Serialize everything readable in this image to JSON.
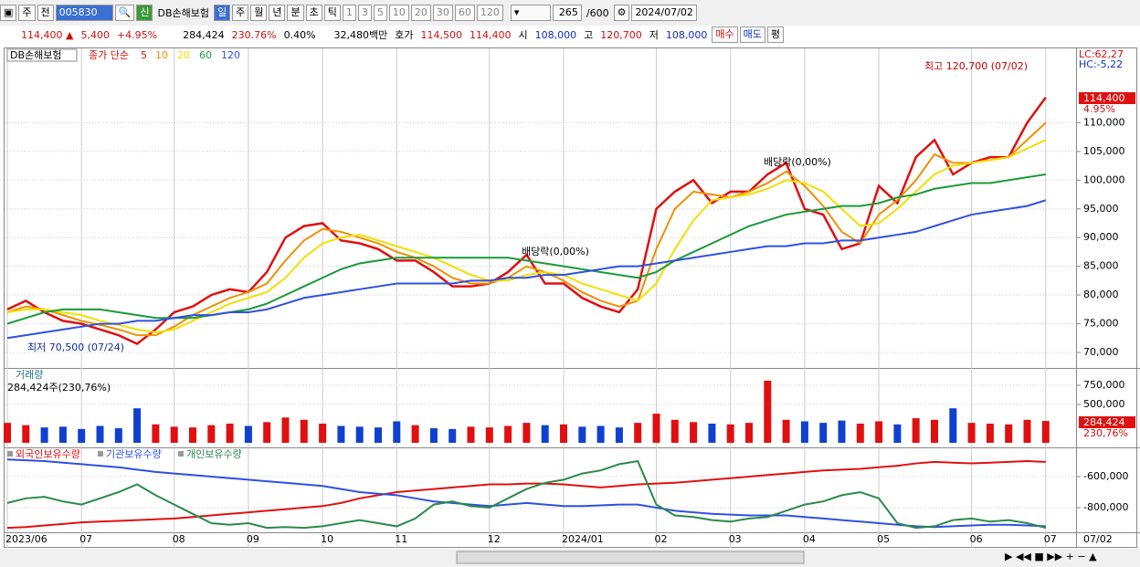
{
  "toolbar": {
    "row1": [
      "주",
      "전",
      "005830",
      "신",
      "DB손해보험",
      "일",
      "주",
      "월",
      "년",
      "분",
      "초",
      "틱",
      "1",
      "3",
      "5",
      "10",
      "20",
      "30",
      "60",
      "120",
      "265",
      "/600",
      "2024/07/02"
    ],
    "row2": [
      "114,400 ▲",
      "5,400",
      "+4.95%",
      "284,424",
      "230.76%",
      "0.40%",
      "32,480백만",
      "호가",
      "114,500",
      "114,400",
      "시",
      "108,000",
      "고",
      "120,700",
      "저",
      "108,000",
      "매수",
      "매도",
      "평"
    ]
  },
  "chart_data": [
    {
      "type": "line",
      "title": "DB손해보험",
      "subtitle": "종가 단순",
      "categories": [
        "2023/06",
        null,
        null,
        null,
        "07",
        null,
        null,
        null,
        null,
        "08",
        null,
        null,
        null,
        "09",
        null,
        null,
        null,
        "10",
        null,
        null,
        null,
        "11",
        null,
        null,
        null,
        null,
        "12",
        null,
        null,
        null,
        "2024/01",
        null,
        null,
        null,
        null,
        "02",
        null,
        null,
        null,
        "03",
        null,
        null,
        null,
        "04",
        null,
        null,
        null,
        "05",
        null,
        null,
        null,
        null,
        "06",
        null,
        null,
        null,
        "07"
      ],
      "last_date": "07/02",
      "ylim": [
        67300,
        123100
      ],
      "yticks": [
        {
          "value": 70000,
          "label": "70,000"
        },
        {
          "value": 75000,
          "label": "75,000"
        },
        {
          "value": 80000,
          "label": "80,000"
        },
        {
          "value": 85000,
          "label": "85,000"
        },
        {
          "value": 90000,
          "label": "90,000"
        },
        {
          "value": 95000,
          "label": "95,000"
        },
        {
          "value": 100000,
          "label": "100,000"
        },
        {
          "value": 105000,
          "label": "105,000"
        },
        {
          "value": 110000,
          "label": "110,000"
        }
      ],
      "grid": true,
      "annotations": {
        "high": "최고 120,700 (07/02)",
        "low": "최저 70,500 (07/24)",
        "dividend1": "배당락(0,00%)",
        "dividend2": "배당락(0,00%)",
        "lc": "LC:62,27",
        "hc": "HC:-5,22",
        "price": "114,400",
        "change": "4.95%"
      },
      "series": [
        {
          "name": "5",
          "color": "#e01010",
          "values": [
            77500,
            79000,
            77000,
            75500,
            75000,
            74000,
            73000,
            71500,
            74000,
            77000,
            78000,
            80000,
            81000,
            80500,
            84000,
            90000,
            92000,
            92500,
            89500,
            89000,
            88000,
            86000,
            86000,
            84000,
            81500,
            81500,
            82000,
            84000,
            87000,
            82000,
            82000,
            79500,
            78000,
            77000,
            81000,
            95000,
            98000,
            100000,
            96000,
            98000,
            98000,
            101000,
            103000,
            95000,
            94000,
            88000,
            89000,
            99000,
            96000,
            104000,
            107000,
            101000,
            103000,
            104000,
            104000,
            110000,
            114400
          ]
        },
        {
          "name": "10",
          "color": "#f09000",
          "values": [
            77000,
            78000,
            77500,
            76500,
            75500,
            74800,
            74000,
            73000,
            73000,
            74500,
            76500,
            78000,
            79500,
            80500,
            82000,
            86000,
            89500,
            91500,
            91000,
            90000,
            89000,
            87500,
            86500,
            85000,
            83000,
            82000,
            82000,
            83000,
            85000,
            84000,
            82500,
            80500,
            79000,
            78000,
            79000,
            88000,
            95000,
            98000,
            97500,
            97000,
            98000,
            99500,
            101500,
            99000,
            95500,
            91000,
            89000,
            94000,
            96500,
            100000,
            104500,
            103000,
            103000,
            103500,
            104000,
            107000,
            110000
          ]
        },
        {
          "name": "20",
          "color": "#f0e000",
          "values": [
            77000,
            77500,
            77500,
            77000,
            76500,
            75500,
            74800,
            74000,
            73500,
            74000,
            75500,
            77000,
            78500,
            79500,
            80500,
            83000,
            86500,
            89000,
            90000,
            90500,
            89500,
            88500,
            87500,
            86500,
            85000,
            83500,
            82500,
            82500,
            83500,
            84000,
            83500,
            82000,
            81000,
            80000,
            79000,
            82000,
            88000,
            93000,
            96500,
            97000,
            97500,
            98500,
            100000,
            99500,
            98000,
            95000,
            92000,
            92500,
            95000,
            98000,
            101000,
            102500,
            103000,
            103500,
            104000,
            105500,
            107000
          ]
        },
        {
          "name": "60",
          "color": "#1a9a3a",
          "values": [
            75000,
            76000,
            77000,
            77500,
            77500,
            77500,
            77000,
            76500,
            76000,
            76000,
            76000,
            76500,
            77000,
            77500,
            78500,
            80000,
            81500,
            83000,
            84500,
            85500,
            86000,
            86500,
            86500,
            86500,
            86500,
            86500,
            86500,
            86500,
            86000,
            85500,
            85000,
            84500,
            84000,
            83500,
            83000,
            84000,
            86000,
            87500,
            89000,
            90500,
            92000,
            93000,
            94000,
            94500,
            95000,
            95500,
            95500,
            96000,
            97000,
            97500,
            98500,
            99000,
            99500,
            99500,
            100000,
            100500,
            101000
          ]
        },
        {
          "name": "120",
          "color": "#3050e0",
          "values": [
            72500,
            73000,
            73500,
            74000,
            74500,
            75000,
            75000,
            75500,
            75500,
            76000,
            76500,
            76500,
            77000,
            77000,
            77500,
            78500,
            79500,
            80000,
            80500,
            81000,
            81500,
            82000,
            82000,
            82000,
            82000,
            82500,
            82500,
            83000,
            83000,
            83500,
            83500,
            84000,
            84500,
            85000,
            85000,
            85500,
            86000,
            86500,
            87000,
            87500,
            88000,
            88500,
            88500,
            89000,
            89000,
            89500,
            89500,
            90000,
            90500,
            91000,
            92000,
            93000,
            94000,
            94500,
            95000,
            95500,
            96500
          ]
        }
      ]
    },
    {
      "type": "bar",
      "title": "거래량",
      "subtitle": "284,424주(230,76%)",
      "up_color": "#e01010",
      "down_color": "#1040d0",
      "current_label": "284,424",
      "current_ratio": "230,76%",
      "ylim": [
        -60000,
        964000
      ],
      "yticks": [
        {
          "value": 500000,
          "label": "500,000"
        },
        {
          "value": 750000,
          "label": "750,000"
        }
      ],
      "values": [
        260000,
        230000,
        200000,
        210000,
        180000,
        220000,
        190000,
        450000,
        240000,
        210000,
        200000,
        230000,
        250000,
        220000,
        270000,
        330000,
        300000,
        250000,
        220000,
        210000,
        200000,
        280000,
        230000,
        190000,
        180000,
        210000,
        200000,
        220000,
        260000,
        230000,
        240000,
        210000,
        220000,
        200000,
        260000,
        380000,
        300000,
        270000,
        250000,
        240000,
        260000,
        810000,
        300000,
        280000,
        260000,
        290000,
        250000,
        280000,
        240000,
        320000,
        300000,
        450000,
        260000,
        250000,
        240000,
        300000,
        284424
      ]
    },
    {
      "type": "line",
      "legend": [
        "외국인보유수량",
        "기관보유수량",
        "개인보유수량"
      ],
      "ylim": [
        -958800,
        -417600
      ],
      "yticks": [
        {
          "value": -800000,
          "label": "-800,000"
        },
        {
          "value": -600000,
          "label": "-600,000"
        }
      ],
      "series": [
        {
          "name": "외국인보유수량",
          "color": "#e01010",
          "values": [
            -930000,
            -925000,
            -915000,
            -905000,
            -895000,
            -890000,
            -885000,
            -880000,
            -875000,
            -870000,
            -860000,
            -850000,
            -840000,
            -830000,
            -820000,
            -810000,
            -800000,
            -790000,
            -770000,
            -740000,
            -720000,
            -700000,
            -690000,
            -680000,
            -670000,
            -660000,
            -650000,
            -650000,
            -645000,
            -645000,
            -650000,
            -660000,
            -670000,
            -660000,
            -650000,
            -645000,
            -640000,
            -630000,
            -620000,
            -610000,
            -600000,
            -590000,
            -580000,
            -570000,
            -560000,
            -555000,
            -550000,
            -540000,
            -530000,
            -515000,
            -505000,
            -510000,
            -515000,
            -510000,
            -505000,
            -500000,
            -505000
          ]
        },
        {
          "name": "기관보유수량",
          "color": "#3050e0",
          "values": [
            -490000,
            -495000,
            -500000,
            -510000,
            -520000,
            -530000,
            -540000,
            -555000,
            -570000,
            -580000,
            -590000,
            -600000,
            -610000,
            -620000,
            -630000,
            -640000,
            -650000,
            -660000,
            -680000,
            -700000,
            -710000,
            -720000,
            -740000,
            -760000,
            -770000,
            -780000,
            -790000,
            -780000,
            -770000,
            -780000,
            -790000,
            -790000,
            -785000,
            -780000,
            -780000,
            -800000,
            -820000,
            -830000,
            -840000,
            -845000,
            -850000,
            -850000,
            -850000,
            -860000,
            -870000,
            -880000,
            -890000,
            -900000,
            -910000,
            -920000,
            -925000,
            -920000,
            -915000,
            -910000,
            -910000,
            -915000,
            -920000
          ]
        },
        {
          "name": "개인보유수량",
          "color": "#2a8a4a",
          "values": [
            -770000,
            -740000,
            -730000,
            -760000,
            -780000,
            -740000,
            -700000,
            -650000,
            -720000,
            -780000,
            -840000,
            -900000,
            -910000,
            -900000,
            -930000,
            -925000,
            -930000,
            -920000,
            -900000,
            -880000,
            -900000,
            -920000,
            -870000,
            -780000,
            -760000,
            -790000,
            -800000,
            -740000,
            -680000,
            -640000,
            -620000,
            -580000,
            -560000,
            -520000,
            -500000,
            -780000,
            -850000,
            -860000,
            -880000,
            -890000,
            -870000,
            -860000,
            -820000,
            -780000,
            -760000,
            -720000,
            -700000,
            -740000,
            -900000,
            -930000,
            -920000,
            -880000,
            -870000,
            -890000,
            -880000,
            -900000,
            -930000
          ]
        }
      ]
    }
  ]
}
